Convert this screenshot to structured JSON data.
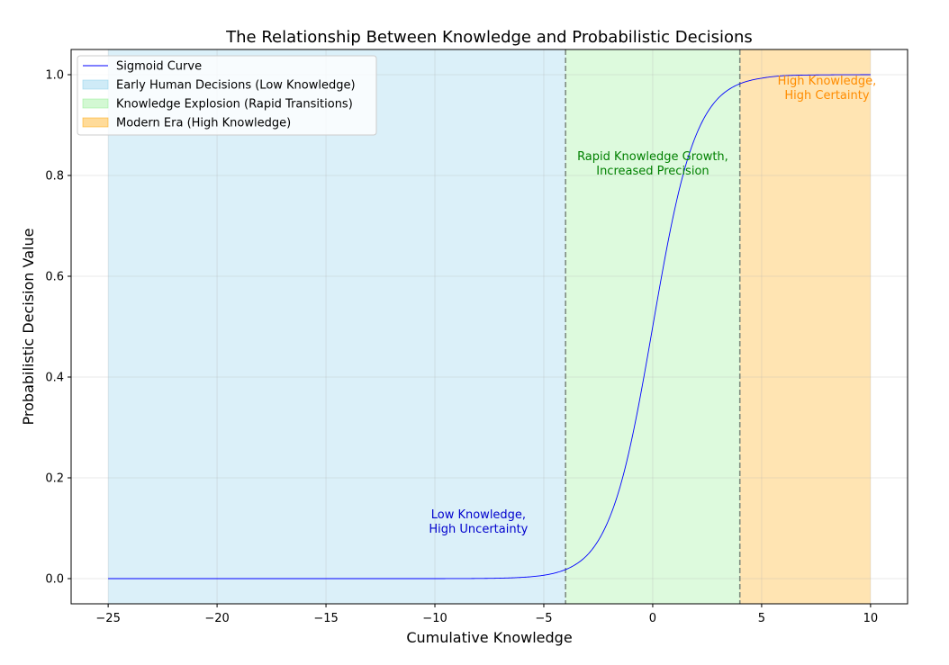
{
  "chart_data": {
    "type": "line",
    "title": "The Relationship Between Knowledge and Probabilistic Decisions",
    "xlabel": "Cumulative Knowledge",
    "ylabel": "Probabilistic Decision Value",
    "xlim": [
      -26.7,
      11.7
    ],
    "ylim": [
      -0.05,
      1.05
    ],
    "xticks": [
      -25,
      -20,
      -15,
      -10,
      -5,
      0,
      5,
      10
    ],
    "yticks": [
      0.0,
      0.2,
      0.4,
      0.6,
      0.8,
      1.0
    ],
    "xtick_labels": [
      "−25",
      "−20",
      "−15",
      "−10",
      "−5",
      "0",
      "5",
      "10"
    ],
    "ytick_labels": [
      "0.0",
      "0.2",
      "0.4",
      "0.6",
      "0.8",
      "1.0"
    ],
    "grid": true,
    "legend_position": "top-left",
    "series": [
      {
        "name": "Sigmoid Curve",
        "color": "#0000ff",
        "x": [
          -25,
          -20,
          -15,
          -10,
          -8,
          -6,
          -5,
          -4,
          -3,
          -2,
          -1.5,
          -1,
          -0.5,
          0,
          0.5,
          1,
          1.5,
          2,
          3,
          4,
          5,
          6,
          8,
          10
        ],
        "y": [
          0.0,
          0.0,
          0.0,
          0.0,
          0.0003,
          0.0025,
          0.0067,
          0.018,
          0.047,
          0.119,
          0.182,
          0.269,
          0.378,
          0.5,
          0.622,
          0.731,
          0.818,
          0.881,
          0.953,
          0.982,
          0.993,
          0.998,
          0.9997,
          1.0
        ]
      }
    ],
    "regions": [
      {
        "name": "Early Human Decisions (Low Knowledge)",
        "x0": -25,
        "x1": -4,
        "color": "#87ceeb",
        "opacity": 0.3
      },
      {
        "name": "Knowledge Explosion (Rapid Transitions)",
        "x0": -4,
        "x1": 4,
        "color": "#90ee90",
        "opacity": 0.3
      },
      {
        "name": "Modern Era (High Knowledge)",
        "x0": 4,
        "x1": 10,
        "color": "#ffa500",
        "opacity": 0.3
      }
    ],
    "vlines": [
      -4,
      4
    ],
    "annotations": [
      {
        "lines": [
          "Low Knowledge,",
          "High Uncertainty"
        ],
        "x": -8,
        "y": 0.12,
        "color": "#0000cd"
      },
      {
        "lines": [
          "Rapid Knowledge Growth,",
          "Increased Precision"
        ],
        "x": 0,
        "y": 0.83,
        "color": "#008000"
      },
      {
        "lines": [
          "High Knowledge,",
          "High Certainty"
        ],
        "x": 8,
        "y": 0.98,
        "color": "#ff8c00"
      }
    ]
  }
}
